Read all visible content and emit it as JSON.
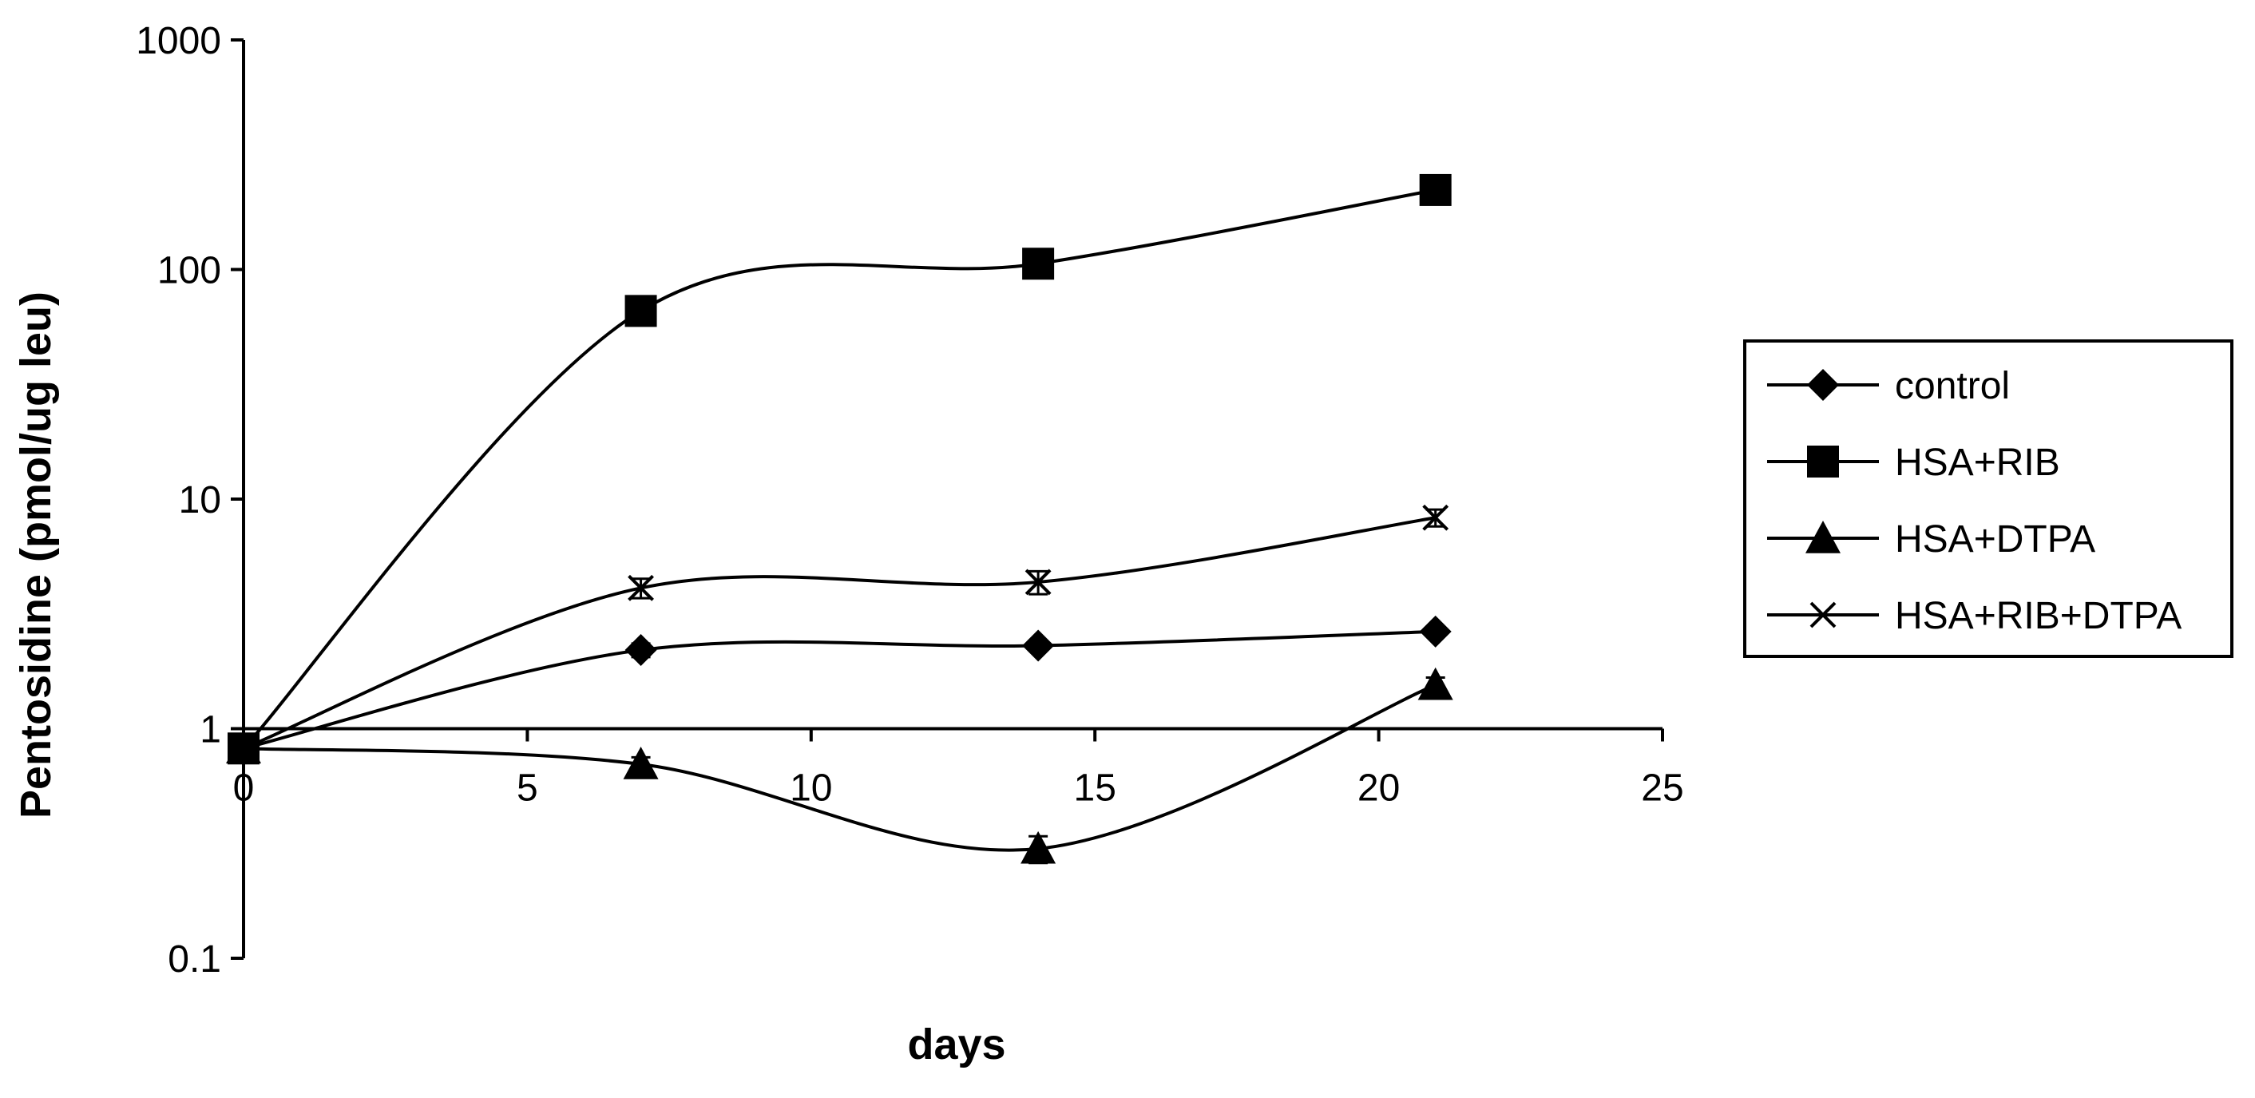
{
  "chart_data": {
    "type": "line",
    "title": "",
    "xlabel": "days",
    "ylabel": "Pentosidine (pmol/ug leu)",
    "xlim": [
      0,
      25
    ],
    "ylim": [
      0.1,
      1000
    ],
    "y_scale": "log",
    "x_ticks": [
      "0",
      "5",
      "10",
      "15",
      "20",
      "25"
    ],
    "y_ticks": [
      "0.1",
      "1",
      "10",
      "100",
      "1000"
    ],
    "x_axis_crosses_y_at": 1,
    "grid": false,
    "legend_position": "right",
    "line_style": "smoothed",
    "x": [
      0,
      7,
      14,
      21
    ],
    "series": [
      {
        "name": "control",
        "marker": "diamond",
        "values": [
          0.82,
          2.2,
          2.3,
          2.65
        ],
        "error": [
          0,
          0.15,
          0.1,
          0.12
        ]
      },
      {
        "name": "HSA+RIB",
        "marker": "square",
        "values": [
          0.82,
          66,
          106,
          222
        ],
        "error": [
          0,
          4,
          5,
          10
        ]
      },
      {
        "name": "HSA+DTPA",
        "marker": "triangle",
        "values": [
          0.82,
          0.7,
          0.3,
          1.55
        ],
        "error": [
          0,
          0.05,
          0.04,
          0.12
        ]
      },
      {
        "name": "HSA+RIB+DTPA",
        "marker": "x",
        "values": [
          0.82,
          4.1,
          4.35,
          8.3
        ],
        "error": [
          0,
          0.4,
          0.5,
          0.7
        ]
      }
    ],
    "colors": {
      "line": "#000000",
      "background": "#ffffff"
    }
  }
}
